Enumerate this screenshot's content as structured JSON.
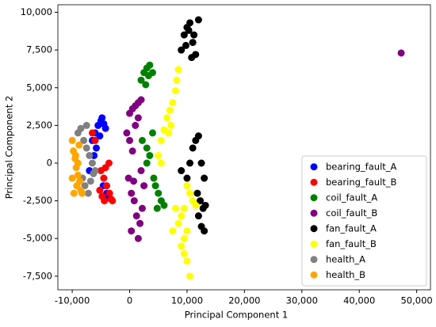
{
  "chart_data": {
    "type": "scatter",
    "xlabel": "Principal Component 1",
    "ylabel": "Principal Component 2",
    "xlim": [
      -12500,
      52400
    ],
    "ylim": [
      -8400,
      10500
    ],
    "xticks": [
      {
        "value": -10000,
        "label": "-10,000"
      },
      0,
      {
        "value": 10000,
        "label": "10,000"
      },
      {
        "value": 20000,
        "label": "20,000"
      },
      {
        "value": 30000,
        "label": "30,000"
      },
      {
        "value": 40000,
        "label": "40,000"
      },
      {
        "value": 50000,
        "label": "50,000"
      }
    ],
    "yticks": [
      {
        "value": -7500,
        "label": "-7,500"
      },
      {
        "value": -5000,
        "label": "-5,000"
      },
      {
        "value": -2500,
        "label": "-2,500"
      },
      0,
      {
        "value": 2500,
        "label": "2,500"
      },
      {
        "value": 5000,
        "label": "5,000"
      },
      {
        "value": 7500,
        "label": "7,500"
      },
      {
        "value": 10000,
        "label": "10,000"
      }
    ],
    "legend": "lower right",
    "series": [
      {
        "name": "bearing_fault_A",
        "color": "#0000ff",
        "x": [
          -6500,
          -6000,
          -5500,
          -5000,
          -4800,
          -4500,
          -4200,
          -5800,
          -6200,
          -7000,
          -4000,
          -3800,
          -5200,
          -4600
        ],
        "values": [
          1500,
          2000,
          2500,
          2800,
          3000,
          2600,
          2300,
          1000,
          500,
          -500,
          -2000,
          -2300,
          1800,
          -1500
        ]
      },
      {
        "name": "bearing_fault_B",
        "color": "#ff0000",
        "x": [
          -5000,
          -4500,
          -4000,
          -3500,
          -3200,
          -4800,
          -4200,
          -3600,
          -5200,
          -6500,
          -6000,
          -3000,
          -4400
        ],
        "values": [
          -500,
          -1000,
          -1500,
          -2000,
          -2400,
          -2200,
          -300,
          0,
          -1800,
          2000,
          1500,
          -2500,
          -2500
        ]
      },
      {
        "name": "coil_fault_A",
        "color": "#008000",
        "x": [
          2000,
          2500,
          3000,
          3500,
          4000,
          2800,
          3300,
          2200,
          3000,
          3500,
          4000,
          4200,
          4500,
          5000,
          5500,
          4800,
          6000,
          3000
        ],
        "values": [
          5500,
          6000,
          6300,
          6500,
          6000,
          5200,
          5800,
          1500,
          1000,
          500,
          2000,
          -1000,
          -1500,
          -2000,
          -2500,
          -3000,
          -2800,
          0
        ]
      },
      {
        "name": "coil_fault_B",
        "color": "#800080",
        "x": [
          0,
          500,
          1000,
          1500,
          2000,
          -500,
          0,
          500,
          1000,
          1500,
          -200,
          300,
          800,
          1200,
          1800,
          2200,
          2500,
          300,
          1500,
          700,
          2000,
          47300
        ],
        "values": [
          3300,
          3600,
          3800,
          4000,
          4200,
          2000,
          1500,
          800,
          2500,
          3000,
          -1000,
          -2000,
          -2500,
          -3500,
          -4000,
          -3000,
          -1500,
          -4500,
          -5000,
          -1200,
          -500,
          7300
        ]
      },
      {
        "name": "fan_fault_A",
        "color": "#000000",
        "x": [
          9000,
          9500,
          10000,
          10500,
          11000,
          11500,
          12000,
          9800,
          10300,
          10800,
          11200,
          10000,
          10500,
          11000,
          11500,
          12000,
          12500,
          13000,
          11800,
          12300,
          12800,
          12000,
          12500,
          13000,
          13200,
          9000
        ],
        "values": [
          7500,
          8500,
          9000,
          9300,
          8000,
          7200,
          9500,
          7800,
          8800,
          7000,
          8500,
          -1000,
          0,
          1000,
          1500,
          1800,
          0,
          -1000,
          -2000,
          -2500,
          -3000,
          -3500,
          -4200,
          -4500,
          -2800,
          -500
        ]
      },
      {
        "name": "fan_fault_B",
        "color": "#ffff00",
        "x": [
          8500,
          8200,
          8000,
          7500,
          7000,
          6500,
          6000,
          5500,
          7200,
          6800,
          5000,
          5500,
          10000,
          10500,
          11000,
          9500,
          9000,
          8500,
          10000,
          9500,
          9000,
          9500,
          10000,
          10500,
          11500,
          7500,
          8000
        ],
        "values": [
          6200,
          5500,
          4800,
          4000,
          3500,
          3000,
          2200,
          1500,
          2500,
          2000,
          500,
          0,
          -1500,
          -2000,
          -2500,
          -3000,
          -3500,
          -4000,
          -4500,
          -5000,
          -5500,
          -6000,
          -6500,
          -7500,
          -2800,
          -4500,
          -3000
        ]
      },
      {
        "name": "health_A",
        "color": "#808080",
        "x": [
          -9000,
          -8500,
          -8000,
          -7500,
          -7000,
          -6500,
          -6000,
          -8200,
          -7800,
          -7200,
          -6800,
          -6300,
          -7500
        ],
        "values": [
          2000,
          2300,
          1500,
          1000,
          500,
          0,
          -500,
          -1000,
          -1500,
          -2000,
          -1200,
          -700,
          2500
        ]
      },
      {
        "name": "health_B",
        "color": "#ffa500",
        "x": [
          -10000,
          -9800,
          -9500,
          -9300,
          -9000,
          -8700,
          -8500,
          -9700,
          -9200,
          -8800,
          -9400,
          -9000,
          -10000,
          -8300
        ],
        "values": [
          1500,
          800,
          300,
          -300,
          -800,
          -1200,
          -1800,
          -2000,
          -1500,
          1200,
          500,
          0,
          -1000,
          -2000
        ]
      }
    ]
  }
}
